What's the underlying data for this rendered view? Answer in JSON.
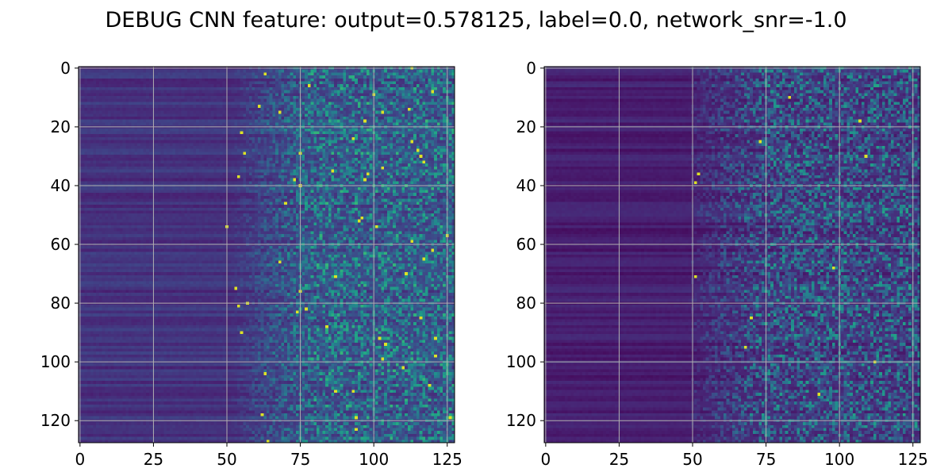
{
  "figure": {
    "title": "DEBUG CNN feature: output=0.578125, label=0.0, network_snr=-1.0"
  },
  "chart_data": [
    {
      "type": "heatmap",
      "colormap": "viridis",
      "rows": 128,
      "cols": 128,
      "xlim": [
        -0.5,
        127.5
      ],
      "ylim": [
        127.5,
        -0.5
      ],
      "xticks": [
        0,
        25,
        50,
        75,
        100,
        125
      ],
      "yticks": [
        0,
        20,
        40,
        60,
        80,
        100,
        120
      ],
      "grid": true,
      "description_of_values": "Low values in columns 0-50, noisy higher values increasing toward columns 75-127"
    },
    {
      "type": "heatmap",
      "colormap": "viridis",
      "rows": 128,
      "cols": 128,
      "xlim": [
        -0.5,
        127.5
      ],
      "ylim": [
        127.5,
        -0.5
      ],
      "xticks": [
        0,
        25,
        50,
        75,
        100,
        125
      ],
      "yticks": [
        0,
        20,
        40,
        60,
        80,
        100,
        120
      ],
      "grid": true,
      "description_of_values": "Low values in columns 0-50, noisy moderate values in columns 50-127"
    }
  ]
}
